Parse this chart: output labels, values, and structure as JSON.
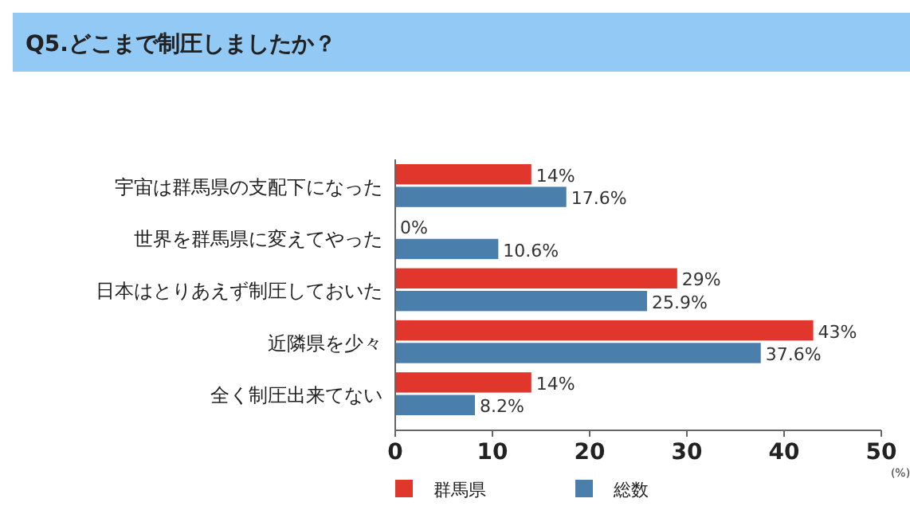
{
  "chart_data": {
    "type": "bar",
    "orientation": "horizontal",
    "title": "Q5.どこまで制圧しましたか？",
    "xlabel": "(%)",
    "categories": [
      "宇宙は群馬県の支配下になった",
      "世界を群馬県に変えてやった",
      "日本はとりあえず制圧しておいた",
      "近隣県を少々",
      "全く制圧出来てない"
    ],
    "series": [
      {
        "name": "群馬県",
        "color": "#e0362c",
        "values": [
          14,
          0,
          29,
          43,
          14
        ],
        "value_labels": [
          "14%",
          "0%",
          "29%",
          "43%",
          "14%"
        ]
      },
      {
        "name": "総数",
        "color": "#4a7fab",
        "values": [
          17.6,
          10.6,
          25.9,
          37.6,
          8.2
        ],
        "value_labels": [
          "17.6%",
          "10.6%",
          "25.9%",
          "37.6%",
          "8.2%"
        ]
      }
    ],
    "xlim": [
      0,
      50
    ],
    "xticks": [
      0,
      10,
      20,
      30,
      40,
      50
    ],
    "legend": "bottom left"
  }
}
